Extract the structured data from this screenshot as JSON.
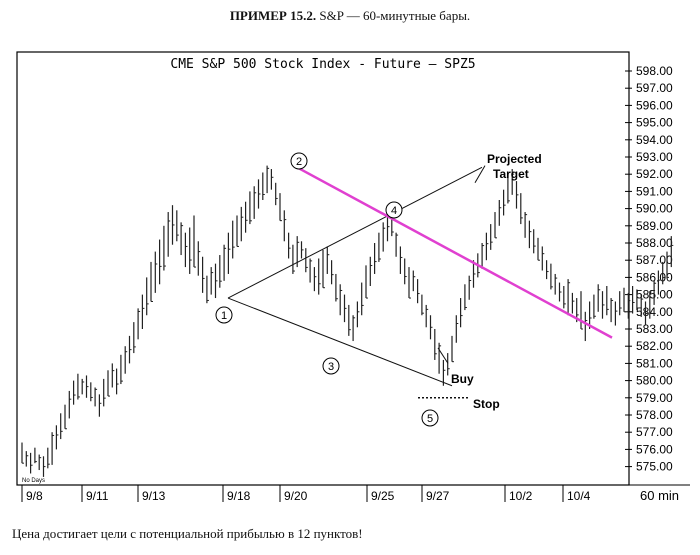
{
  "caption": {
    "label": "ПРИМЕР 15.2.",
    "text": "S&P — 60-минутные бары."
  },
  "footer": "Цена достигает цели с потенциальной прибылью в 12 пунктов!",
  "chart_data": {
    "type": "bar",
    "title": "CME  S&P 500  Stock Index - Future — SPZ5",
    "interval_label": "60 min",
    "corner_note": "No Days",
    "ylim": [
      574,
      599
    ],
    "y_ticks": [
      "598.00",
      "597.00",
      "596.00",
      "595.00",
      "594.00",
      "593.00",
      "592.00",
      "591.00",
      "590.00",
      "589.00",
      "588.00",
      "587.00",
      "586.00",
      "585.00",
      "584.00",
      "583.00",
      "582.00",
      "581.00",
      "580.00",
      "579.00",
      "578.00",
      "577.00",
      "576.00",
      "575.00"
    ],
    "x_ticks": [
      "9/8",
      "9/11",
      "9/13",
      "9/18",
      "9/20",
      "9/25",
      "9/27",
      "10/2",
      "10/4"
    ],
    "pattern_points": [
      {
        "label": "1",
        "value": 584.8
      },
      {
        "label": "2",
        "value": 592.5
      },
      {
        "label": "3",
        "value": 582.3
      },
      {
        "label": "4",
        "value": 589.5
      },
      {
        "label": "5",
        "value": 579.7
      }
    ],
    "annotations": [
      {
        "text": "Projected",
        "value": 593.0
      },
      {
        "text": "Target",
        "value": 592.3
      },
      {
        "text": "Buy",
        "value": 580.5
      },
      {
        "text": "Stop",
        "value": 579.0
      }
    ],
    "stop_level": 579.0,
    "colors": {
      "bars": "#222222",
      "trendline": "#e040d0",
      "frame": "#000000"
    },
    "bars": [
      [
        575.2,
        576.4
      ],
      [
        575.0,
        575.9
      ],
      [
        574.6,
        575.8
      ],
      [
        575.2,
        576.1
      ],
      [
        574.8,
        575.7
      ],
      [
        574.4,
        575.6
      ],
      [
        574.9,
        576.1
      ],
      [
        575.1,
        577.0
      ],
      [
        576.0,
        577.4
      ],
      [
        576.6,
        578.1
      ],
      [
        577.2,
        578.6
      ],
      [
        577.8,
        579.4
      ],
      [
        578.6,
        580.0
      ],
      [
        578.9,
        580.4
      ],
      [
        579.2,
        580.1
      ],
      [
        579.0,
        580.3
      ],
      [
        578.8,
        579.9
      ],
      [
        578.5,
        579.6
      ],
      [
        577.9,
        579.2
      ],
      [
        578.5,
        580.1
      ],
      [
        579.1,
        580.6
      ],
      [
        579.6,
        581.0
      ],
      [
        579.2,
        580.7
      ],
      [
        579.8,
        581.5
      ],
      [
        580.4,
        582.0
      ],
      [
        581.0,
        582.6
      ],
      [
        581.6,
        583.4
      ],
      [
        582.4,
        584.2
      ],
      [
        583.0,
        585.0
      ],
      [
        583.8,
        586.0
      ],
      [
        584.6,
        586.9
      ],
      [
        585.1,
        587.5
      ],
      [
        585.6,
        588.2
      ],
      [
        586.4,
        589.0
      ],
      [
        587.2,
        589.8
      ],
      [
        587.9,
        590.2
      ],
      [
        588.1,
        589.9
      ],
      [
        587.3,
        589.2
      ],
      [
        586.6,
        588.6
      ],
      [
        586.2,
        588.9
      ],
      [
        586.6,
        589.6
      ],
      [
        586.1,
        588.1
      ],
      [
        585.1,
        587.2
      ],
      [
        584.5,
        586.1
      ],
      [
        585.0,
        586.6
      ],
      [
        584.8,
        586.8
      ],
      [
        585.4,
        587.3
      ],
      [
        585.8,
        587.9
      ],
      [
        586.2,
        588.6
      ],
      [
        587.1,
        589.3
      ],
      [
        587.8,
        589.6
      ],
      [
        588.1,
        590.1
      ],
      [
        588.6,
        590.4
      ],
      [
        589.1,
        591.0
      ],
      [
        589.4,
        591.3
      ],
      [
        590.0,
        591.7
      ],
      [
        590.5,
        592.1
      ],
      [
        590.9,
        592.5
      ],
      [
        591.1,
        592.3
      ],
      [
        590.2,
        591.5
      ],
      [
        589.3,
        590.9
      ],
      [
        588.1,
        589.9
      ],
      [
        587.1,
        588.6
      ],
      [
        586.2,
        587.9
      ],
      [
        586.6,
        588.4
      ],
      [
        587.1,
        588.1
      ],
      [
        586.3,
        587.7
      ],
      [
        585.7,
        587.1
      ],
      [
        585.2,
        586.6
      ],
      [
        585.0,
        587.1
      ],
      [
        585.4,
        587.6
      ],
      [
        586.2,
        587.8
      ],
      [
        585.6,
        587.0
      ],
      [
        584.6,
        586.2
      ],
      [
        583.8,
        585.6
      ],
      [
        583.4,
        585.0
      ],
      [
        582.6,
        584.4
      ],
      [
        582.3,
        583.8
      ],
      [
        583.1,
        584.6
      ],
      [
        583.8,
        585.7
      ],
      [
        584.8,
        586.7
      ],
      [
        585.5,
        587.2
      ],
      [
        586.2,
        588.0
      ],
      [
        586.9,
        588.6
      ],
      [
        587.5,
        589.2
      ],
      [
        588.1,
        589.8
      ],
      [
        588.4,
        589.6
      ],
      [
        587.2,
        588.6
      ],
      [
        586.2,
        587.8
      ],
      [
        585.6,
        587.1
      ],
      [
        584.8,
        586.6
      ],
      [
        585.2,
        586.4
      ],
      [
        584.5,
        585.9
      ],
      [
        583.8,
        585.0
      ],
      [
        583.1,
        584.4
      ],
      [
        582.4,
        583.8
      ],
      [
        581.2,
        583.0
      ],
      [
        580.4,
        582.2
      ],
      [
        579.7,
        581.2
      ],
      [
        580.3,
        581.6
      ],
      [
        581.1,
        582.6
      ],
      [
        582.2,
        583.8
      ],
      [
        583.1,
        584.8
      ],
      [
        584.1,
        585.6
      ],
      [
        584.7,
        586.1
      ],
      [
        585.4,
        587.0
      ],
      [
        586.0,
        587.4
      ],
      [
        586.5,
        588.0
      ],
      [
        587.0,
        588.6
      ],
      [
        587.6,
        589.1
      ],
      [
        588.3,
        589.8
      ],
      [
        589.0,
        590.5
      ],
      [
        589.6,
        591.1
      ],
      [
        590.3,
        591.8
      ],
      [
        590.8,
        592.3
      ],
      [
        590.0,
        591.6
      ],
      [
        589.1,
        590.9
      ],
      [
        588.3,
        589.8
      ],
      [
        587.7,
        589.3
      ],
      [
        587.4,
        588.8
      ],
      [
        587.0,
        588.3
      ],
      [
        586.4,
        587.8
      ],
      [
        585.9,
        587.0
      ],
      [
        585.3,
        586.8
      ],
      [
        585.0,
        586.2
      ],
      [
        584.6,
        585.7
      ],
      [
        584.2,
        585.5
      ],
      [
        583.8,
        585.9
      ],
      [
        583.9,
        585.1
      ],
      [
        583.4,
        584.8
      ],
      [
        583.0,
        585.2
      ],
      [
        582.3,
        584.0
      ],
      [
        583.0,
        584.6
      ],
      [
        583.6,
        585.0
      ],
      [
        584.0,
        585.6
      ],
      [
        583.6,
        585.2
      ],
      [
        583.8,
        585.5
      ],
      [
        583.4,
        584.8
      ],
      [
        583.2,
        584.6
      ],
      [
        583.8,
        585.2
      ],
      [
        584.0,
        585.4
      ],
      [
        583.6,
        585.1
      ],
      [
        583.9,
        585.5
      ],
      [
        584.1,
        585.3
      ],
      [
        583.7,
        585.0
      ],
      [
        583.2,
        584.6
      ],
      [
        583.6,
        585.2
      ],
      [
        584.4,
        585.8
      ],
      [
        585.0,
        586.4
      ],
      [
        585.6,
        586.9
      ],
      [
        586.0,
        587.5
      ],
      [
        586.6,
        588.4
      ]
    ]
  }
}
